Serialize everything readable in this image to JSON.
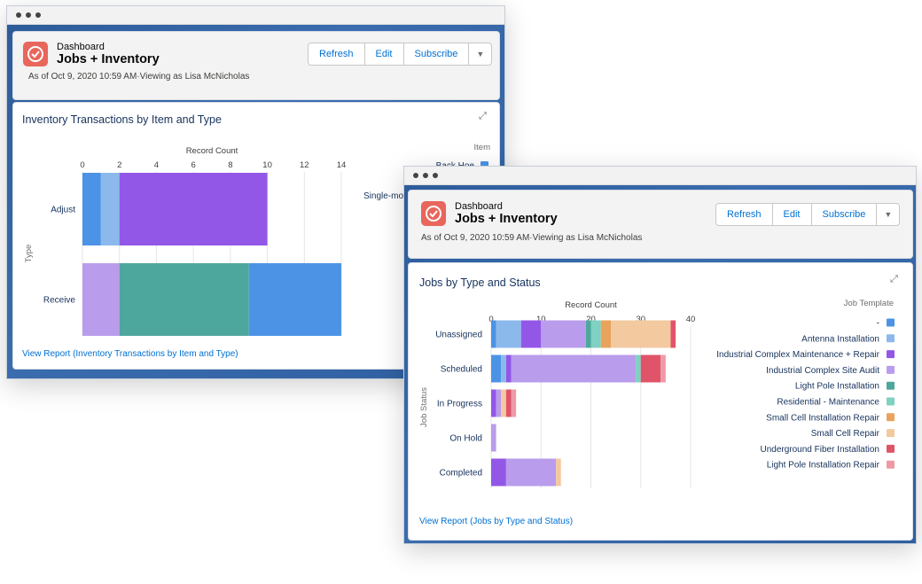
{
  "windows": [
    {
      "header": {
        "type_label": "Dashboard",
        "title": "Jobs + Inventory",
        "subtitle": "As of Oct 9, 2020 10:59 AM·Viewing as Lisa McNicholas",
        "buttons": [
          "Refresh",
          "Edit",
          "Subscribe"
        ],
        "dropdown_icon": "chevron-down-icon"
      },
      "card": {
        "title": "Inventory Transactions by Item and Type",
        "link": "View Report (Inventory Transactions by Item and Type)",
        "expand_icon": "expand-icon"
      }
    },
    {
      "header": {
        "type_label": "Dashboard",
        "title": "Jobs + Inventory",
        "subtitle": "As of Oct 9, 2020 10:59 AM·Viewing as Lisa McNicholas",
        "buttons": [
          "Refresh",
          "Edit",
          "Subscribe"
        ],
        "dropdown_icon": "chevron-down-icon"
      },
      "card": {
        "title": "Jobs by Type and Status",
        "link": "View Report (Jobs by Type and Status)",
        "expand_icon": "expand-icon"
      }
    }
  ],
  "chart_data": [
    {
      "type": "bar",
      "orientation": "horizontal",
      "stacked": true,
      "xlabel": "Record Count",
      "ylabel": "Type",
      "xlim": [
        0,
        14
      ],
      "xticks": [
        0,
        2,
        4,
        6,
        8,
        10,
        12,
        14
      ],
      "categories": [
        "Adjust",
        "Receive"
      ],
      "legend_title": "Item",
      "legend_visible": [
        "Back Hoe",
        "Single-mo"
      ],
      "series": [
        {
          "name": "Back Hoe",
          "color": "#4c93e6",
          "values": [
            1,
            0
          ]
        },
        {
          "name": "",
          "color": "#8bb9ec",
          "values": [
            1,
            0
          ]
        },
        {
          "name": "",
          "color": "#9357e8",
          "values": [
            8,
            0
          ]
        },
        {
          "name": "",
          "color": "#b99ceb",
          "values": [
            0,
            2
          ]
        },
        {
          "name": "",
          "color": "#4ea79c",
          "values": [
            0,
            7
          ]
        },
        {
          "name": "",
          "color": "#4c93e6",
          "values": [
            0,
            5
          ]
        }
      ]
    },
    {
      "type": "bar",
      "orientation": "horizontal",
      "stacked": true,
      "xlabel": "Record Count",
      "ylabel": "Job Status",
      "xlim": [
        0,
        40
      ],
      "xticks": [
        0,
        10,
        20,
        30,
        40
      ],
      "categories": [
        "Unassigned",
        "Scheduled",
        "In Progress",
        "On Hold",
        "Completed"
      ],
      "legend_title": "Job Template",
      "series": [
        {
          "name": "-",
          "color": "#4c93e6",
          "values": [
            1,
            2,
            0,
            0,
            0
          ]
        },
        {
          "name": "Antenna Installation",
          "color": "#8bb9ec",
          "values": [
            5,
            1,
            0,
            0,
            0
          ]
        },
        {
          "name": "Industrial Complex Maintenance + Repair",
          "color": "#9357e8",
          "values": [
            4,
            1,
            1,
            0,
            3
          ]
        },
        {
          "name": "Industrial Complex Site Audit",
          "color": "#b99ceb",
          "values": [
            9,
            25,
            1,
            1,
            10
          ]
        },
        {
          "name": "Light Pole Installation",
          "color": "#4ea79c",
          "values": [
            1,
            0,
            0,
            0,
            0
          ]
        },
        {
          "name": "Residential - Maintenance",
          "color": "#7fd1c2",
          "values": [
            2,
            1,
            0,
            0,
            0
          ]
        },
        {
          "name": "Small Cell Installation Repair",
          "color": "#e8a35c",
          "values": [
            2,
            0,
            0,
            0,
            0
          ]
        },
        {
          "name": "Small Cell Repair",
          "color": "#f3c9a0",
          "values": [
            12,
            0,
            1,
            0,
            1
          ]
        },
        {
          "name": "Underground Fiber Installation",
          "color": "#e0546a",
          "values": [
            1,
            4,
            1,
            0,
            0
          ]
        },
        {
          "name": "Light Pole Installation Repair",
          "color": "#ee9aa5",
          "values": [
            0,
            1,
            1,
            0,
            0
          ]
        }
      ]
    }
  ]
}
